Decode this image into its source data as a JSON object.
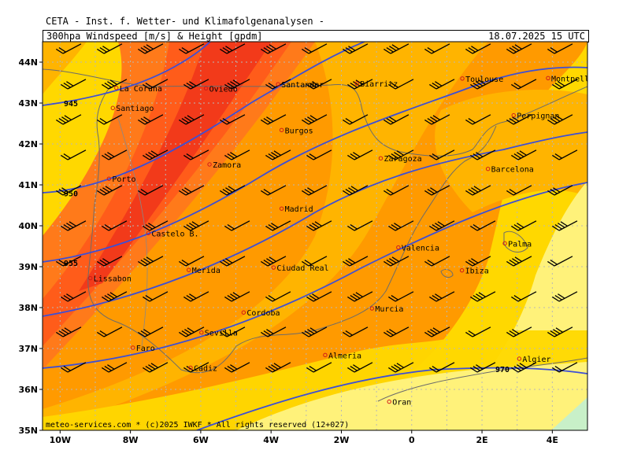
{
  "header": {
    "title": "CETA - Inst. f. Wetter- und Klimafolgenanalysen -",
    "subtitle": "300hpa_Windspeed_[m/s]_&_Height_[gpdm]",
    "datetime": "18.07.2025  15 UTC"
  },
  "footer": {
    "copyright": "meteo-services.com * (c)2025 IWKF * All rights reserved (12+027)"
  },
  "axes": {
    "lon_labels": [
      "10W",
      "8W",
      "6W",
      "4W",
      "2W",
      "0",
      "2E",
      "4E"
    ],
    "lat_labels": [
      "44N",
      "43N",
      "42N",
      "41N",
      "40N",
      "39N",
      "38N",
      "37N",
      "36N",
      "35N"
    ]
  },
  "contours": [
    {
      "label": "945",
      "lat_at_left": 43.0
    },
    {
      "label": "950",
      "lat_at_left": 40.8
    },
    {
      "label": "955",
      "lat_at_left": 39.1
    },
    {
      "label": "970",
      "lat_at_left": 36.7
    }
  ],
  "cities": [
    {
      "name": "La Coruna",
      "lon": -8.4,
      "lat": 43.37
    },
    {
      "name": "Santiago",
      "lon": -8.5,
      "lat": 42.88
    },
    {
      "name": "Oviedo",
      "lon": -5.85,
      "lat": 43.36
    },
    {
      "name": "Santander",
      "lon": -3.8,
      "lat": 43.46
    },
    {
      "name": "Biarritz",
      "lon": -1.56,
      "lat": 43.48
    },
    {
      "name": "Toulouse",
      "lon": 1.44,
      "lat": 43.6
    },
    {
      "name": "Montpellier",
      "lon": 3.88,
      "lat": 43.61
    },
    {
      "name": "Perpignan",
      "lon": 2.9,
      "lat": 42.7
    },
    {
      "name": "Burgos",
      "lon": -3.7,
      "lat": 42.34
    },
    {
      "name": "Porto",
      "lon": -8.61,
      "lat": 41.15
    },
    {
      "name": "Zamora",
      "lon": -5.75,
      "lat": 41.5
    },
    {
      "name": "Zaragoza",
      "lon": -0.88,
      "lat": 41.65
    },
    {
      "name": "Barcelona",
      "lon": 2.17,
      "lat": 41.39
    },
    {
      "name": "Madrid",
      "lon": -3.7,
      "lat": 40.42
    },
    {
      "name": "Castelo B.",
      "lon": -7.49,
      "lat": 39.82
    },
    {
      "name": "Valencia",
      "lon": -0.38,
      "lat": 39.47
    },
    {
      "name": "Palma",
      "lon": 2.65,
      "lat": 39.57
    },
    {
      "name": "Lissabon",
      "lon": -9.14,
      "lat": 38.72
    },
    {
      "name": "Merida",
      "lon": -6.34,
      "lat": 38.92
    },
    {
      "name": "Ciudad Real",
      "lon": -3.93,
      "lat": 38.98
    },
    {
      "name": "Ibiza",
      "lon": 1.43,
      "lat": 38.91
    },
    {
      "name": "Cordoba",
      "lon": -4.78,
      "lat": 37.88
    },
    {
      "name": "Murcia",
      "lon": -1.13,
      "lat": 37.98
    },
    {
      "name": "Sevilla",
      "lon": -5.98,
      "lat": 37.39
    },
    {
      "name": "Faro",
      "lon": -7.93,
      "lat": 37.02
    },
    {
      "name": "Almeria",
      "lon": -2.46,
      "lat": 36.84
    },
    {
      "name": "Algier",
      "lon": 3.06,
      "lat": 36.75
    },
    {
      "name": "Cadiz",
      "lon": -6.29,
      "lat": 36.53
    },
    {
      "name": "Oran",
      "lon": -0.64,
      "lat": 35.7
    }
  ],
  "colors": {
    "ocean_dark": "#ff6a2a",
    "c25": "#ffd800",
    "c30": "#ffb400",
    "c35": "#ff9a00",
    "c40": "#ff7a1a",
    "c45": "#ff5c1a",
    "c50": "#f23a1a",
    "light": "#fff27a",
    "green": "#c8f0c8",
    "contour": "#3d4fd6",
    "grid": "#b8b8b8"
  }
}
